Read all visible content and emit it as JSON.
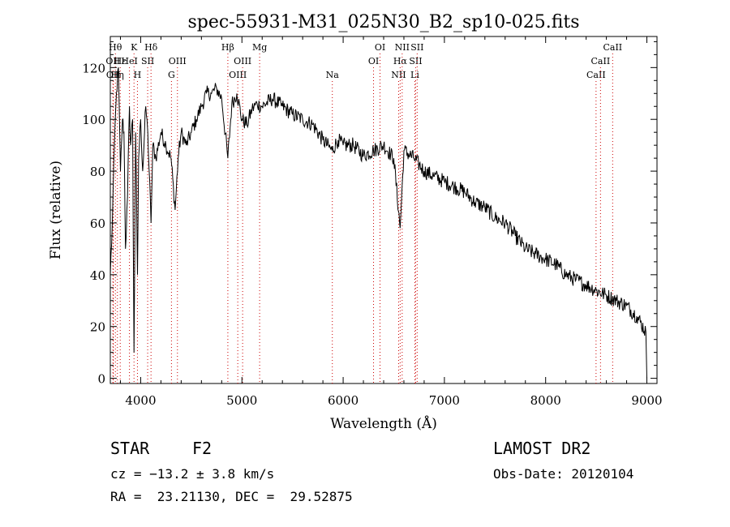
{
  "chart_data": {
    "type": "line",
    "title": "spec-55931-M31_025N30_B2_sp10-025.fits",
    "xlabel": "Wavelength (Å)",
    "ylabel": "Flux (relative)",
    "xlim": [
      3700,
      9100
    ],
    "ylim": [
      -2,
      132
    ],
    "xticks": [
      4000,
      5000,
      6000,
      7000,
      8000,
      9000
    ],
    "yticks": [
      0,
      20,
      40,
      60,
      80,
      100,
      120
    ],
    "grid": false,
    "line_color": "#000000",
    "marker_color": "#cc0000",
    "series": [
      {
        "x": [
          3700,
          3720,
          3740,
          3760,
          3780,
          3800,
          3820,
          3835,
          3850,
          3870,
          3889,
          3900,
          3920,
          3934,
          3950,
          3968,
          3980,
          4000,
          4020,
          4050,
          4070,
          4102,
          4120,
          4150,
          4200,
          4250,
          4300,
          4340,
          4370,
          4400,
          4450,
          4500,
          4550,
          4600,
          4650,
          4700,
          4750,
          4800,
          4861,
          4900,
          4950,
          5000,
          5050,
          5100,
          5150,
          5200,
          5300,
          5400,
          5500,
          5600,
          5700,
          5800,
          5890,
          5950,
          6000,
          6100,
          6200,
          6300,
          6400,
          6500,
          6563,
          6600,
          6700,
          6800,
          6900,
          7000,
          7100,
          7200,
          7300,
          7400,
          7500,
          7600,
          7700,
          7800,
          7900,
          8000,
          8100,
          8200,
          8300,
          8400,
          8500,
          8600,
          8700,
          8800,
          8900,
          8990,
          9000
        ],
        "y": [
          40,
          60,
          90,
          110,
          120,
          80,
          100,
          95,
          50,
          70,
          105,
          90,
          100,
          10,
          95,
          40,
          85,
          100,
          80,
          105,
          95,
          60,
          90,
          85,
          95,
          90,
          85,
          65,
          85,
          95,
          90,
          95,
          100,
          105,
          110,
          110,
          112,
          108,
          85,
          106,
          110,
          100,
          98,
          104,
          106,
          105,
          108,
          105,
          102,
          100,
          98,
          92,
          88,
          92,
          90,
          90,
          86,
          88,
          90,
          85,
          58,
          88,
          85,
          80,
          78,
          76,
          74,
          72,
          68,
          66,
          62,
          60,
          55,
          50,
          48,
          46,
          44,
          40,
          38,
          36,
          34,
          32,
          30,
          28,
          24,
          18,
          0
        ]
      }
    ],
    "line_markers": [
      {
        "x": 3726,
        "label": "OII",
        "row": 2
      },
      {
        "x": 3730,
        "label": "OII",
        "row": 3
      },
      {
        "x": 3750,
        "label": "Hθ",
        "row": 1
      },
      {
        "x": 3770,
        "label": "Hη",
        "row": 3
      },
      {
        "x": 3798,
        "label": "Hε",
        "row": 2
      },
      {
        "x": 3889,
        "label": "HeI",
        "row": 2
      },
      {
        "x": 3934,
        "label": "K",
        "row": 1
      },
      {
        "x": 3968,
        "label": "H",
        "row": 3
      },
      {
        "x": 4069,
        "label": "SII",
        "row": 2
      },
      {
        "x": 4102,
        "label": "Hδ",
        "row": 1
      },
      {
        "x": 4304,
        "label": "G",
        "row": 3
      },
      {
        "x": 4363,
        "label": "OIII",
        "row": 2
      },
      {
        "x": 4861,
        "label": "Hβ",
        "row": 1
      },
      {
        "x": 4959,
        "label": "OIII",
        "row": 3
      },
      {
        "x": 5007,
        "label": "OIII",
        "row": 2
      },
      {
        "x": 5175,
        "label": "Mg",
        "row": 1
      },
      {
        "x": 5893,
        "label": "Na",
        "row": 3
      },
      {
        "x": 6300,
        "label": "OI",
        "row": 2
      },
      {
        "x": 6364,
        "label": "OI",
        "row": 1
      },
      {
        "x": 6548,
        "label": "NII",
        "row": 3
      },
      {
        "x": 6563,
        "label": "Hα",
        "row": 2
      },
      {
        "x": 6583,
        "label": "NII",
        "row": 1
      },
      {
        "x": 6708,
        "label": "Li",
        "row": 3
      },
      {
        "x": 6716,
        "label": "SII",
        "row": 2
      },
      {
        "x": 6731,
        "label": "SII",
        "row": 1
      },
      {
        "x": 8498,
        "label": "CaII",
        "row": 3
      },
      {
        "x": 8542,
        "label": "CaII",
        "row": 2
      },
      {
        "x": 8662,
        "label": "CaII",
        "row": 1
      }
    ]
  },
  "info": {
    "class_label": "STAR",
    "subclass": "F2",
    "survey": "LAMOST DR2",
    "cz": "cz = −13.2 ± 3.8 km/s",
    "obs_date": "Obs-Date: 20120104",
    "coords": "RA =  23.21130, DEC =  29.52875"
  }
}
